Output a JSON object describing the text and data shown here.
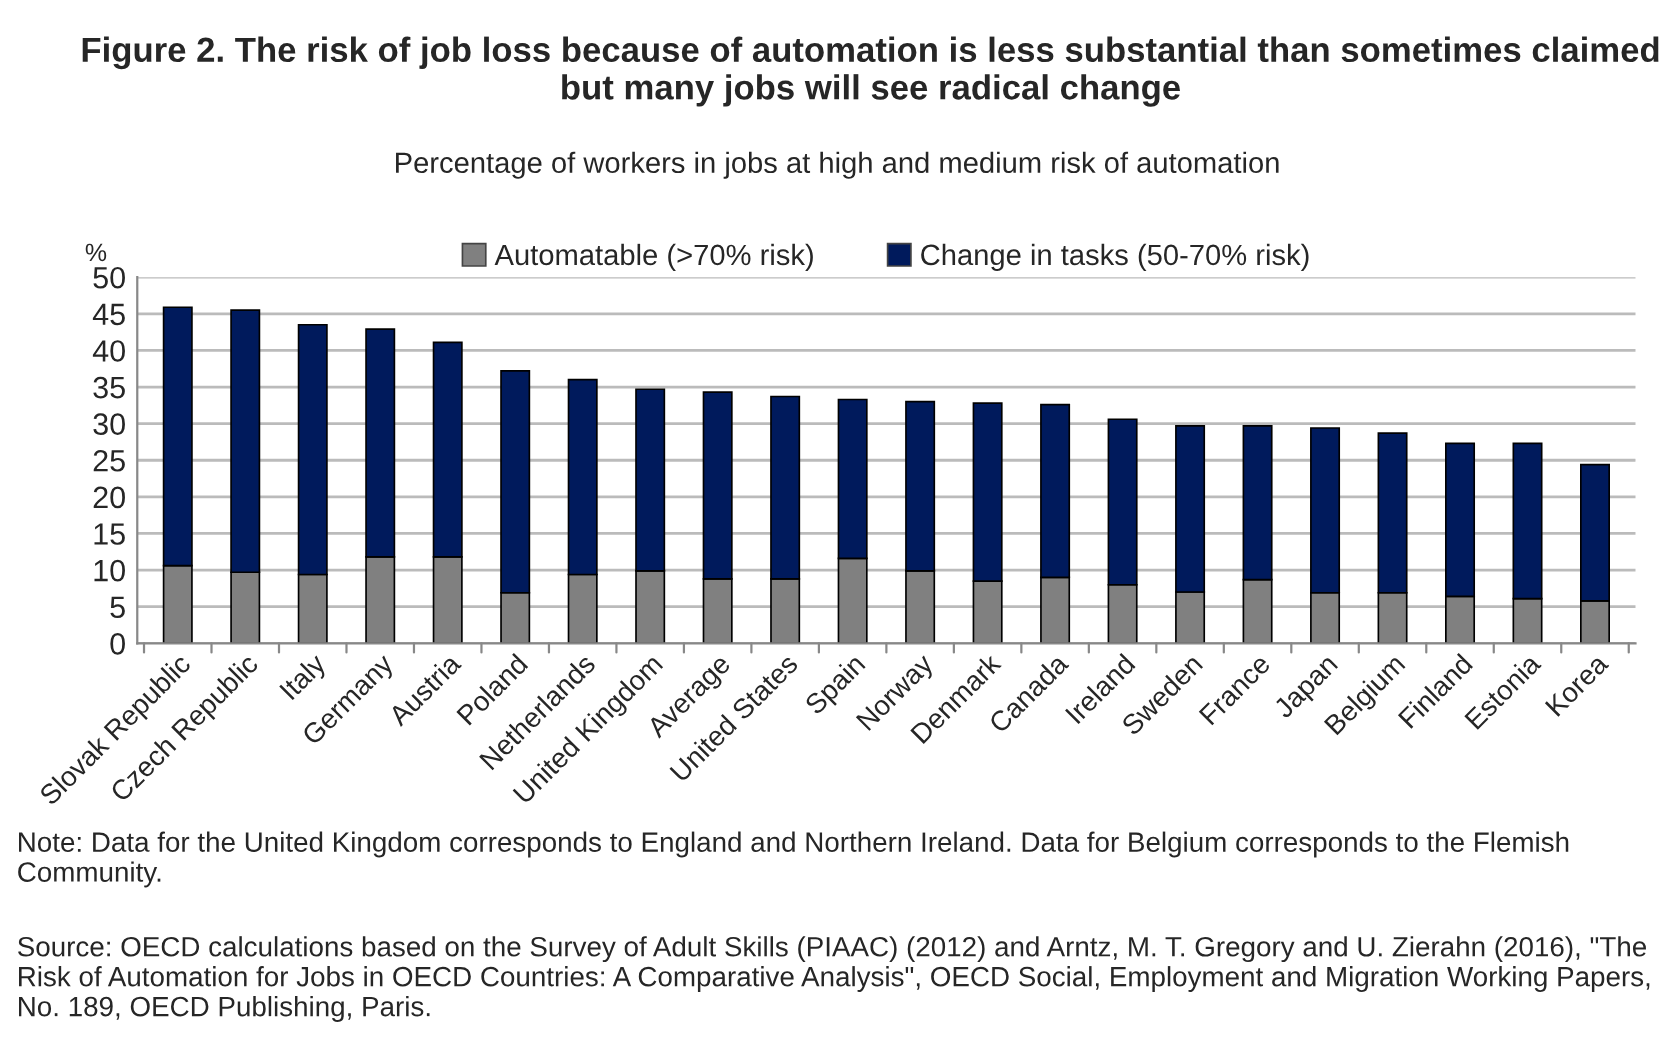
{
  "chart_data": {
    "type": "bar",
    "stacked": true,
    "title": "Figure 2. The risk of job loss because of automation is less substantial than sometimes claimed\nbut many jobs will see radical change",
    "subtitle": "Percentage of workers in jobs at high and medium risk of automation",
    "ylabel": "%",
    "categories": [
      "Slovak Republic",
      "Czech Republic",
      "Italy",
      "Germany",
      "Austria",
      "Poland",
      "Netherlands",
      "United Kingdom",
      "Average",
      "United States",
      "Spain",
      "Norway",
      "Denmark",
      "Canada",
      "Ireland",
      "Sweden",
      "France",
      "Japan",
      "Belgium",
      "Finland",
      "Estonia",
      "Korea"
    ],
    "series": [
      {
        "name": "Automatable (>70% risk)",
        "color": "#808080",
        "values": [
          10.6,
          9.7,
          9.4,
          11.8,
          11.8,
          6.9,
          9.4,
          9.9,
          8.8,
          8.8,
          11.6,
          9.9,
          8.5,
          9.0,
          8.0,
          7.0,
          8.7,
          6.9,
          6.9,
          6.4,
          6.1,
          5.8
        ]
      },
      {
        "name": "Change in tasks (50-70% risk)",
        "color": "#001a5c",
        "values": [
          35.3,
          35.8,
          34.1,
          31.1,
          29.3,
          30.3,
          26.6,
          24.8,
          25.5,
          24.9,
          21.7,
          23.1,
          24.3,
          23.6,
          22.6,
          22.7,
          21.0,
          22.5,
          21.8,
          20.9,
          21.2,
          18.6
        ]
      }
    ],
    "ylim": [
      0,
      50
    ],
    "yticks": [
      0,
      5,
      10,
      15,
      20,
      25,
      30,
      35,
      40,
      45,
      50
    ],
    "grid": "y",
    "legend": "top",
    "annotations": [
      "Note: Data for the United Kingdom corresponds to England and Northern Ireland. Data for Belgium corresponds to the Flemish Community.",
      "Source: OECD calculations based on the Survey of Adult Skills (PIAAC) (2012) and Arntz, M. T. Gregory and U. Zierahn (2016), \"The Risk of Automation for Jobs in OECD Countries: A Comparative Analysis\", OECD Social, Employment and Migration Working Papers, No. 189, OECD Publishing, Paris."
    ]
  }
}
